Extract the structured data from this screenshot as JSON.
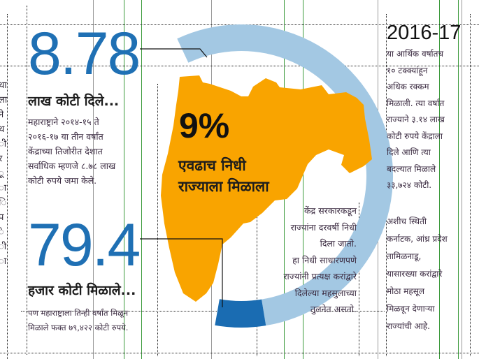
{
  "colors": {
    "accent_blue": "#1f70b4",
    "ring_light": "#a3c8e3",
    "ring_dark": "#1a6cb2",
    "map_orange": "#f9a400"
  },
  "left_fragments": [
    "था",
    "ला",
    "ने",
    "थ",
    "ी.",
    "र",
    "ू",
    "ा",
    "ि",
    "प",
    "े",
    "ी",
    "ा"
  ],
  "stat1": {
    "value": "8.78",
    "heading": "लाख कोटी दिले...",
    "lines": [
      "महाराष्ट्राने २०१४-१५ ते",
      "२०१६-१७ या तीन वर्षांत",
      "केंद्राच्या तिजोरीत देशात",
      "सर्वाधिक म्हणजे ८.७८ लाख",
      "कोटी रुपये जमा केले."
    ]
  },
  "stat2": {
    "value": "79.4",
    "heading": "हजार कोटी मिळाले...",
    "lines": [
      "पण महाराष्ट्राला तिन्ही वर्षांत मिळून",
      "मिळाले फक्त ७९,४२२ कोटी रुपये."
    ]
  },
  "center": {
    "percent": "9%",
    "lines": [
      "एवढाच निधी",
      "राज्याला मिळाला"
    ],
    "share_percent": 9
  },
  "middle_note": {
    "lines": [
      "केंद्र सरकारकडून",
      "राज्यांना दरवर्षी निधी",
      "दिला जातो.",
      "हा निधी साधारणपणे",
      "राज्यांनी प्रत्यक्ष करांद्वारे",
      "दिलेल्या महसुलाच्या",
      "तुलनेत असतो."
    ]
  },
  "sidebar": {
    "year": "2016-17",
    "para1": [
      "या आर्थिक वर्षातच",
      "१० टक्क्यांहून",
      "अधिक रक्कम",
      "मिळाली. त्या वर्षात",
      "राज्याने ३.१४ लाख",
      "कोटी रुपये केंद्राला",
      "दिले आणि त्या",
      "बदल्यात मिळाले",
      "३३,७२४ कोटी."
    ],
    "para2": [
      "अशीच स्थिती",
      "कर्नाटक, आंध्र प्रदेश",
      "तामिळनाडू,",
      "यासारख्या करांद्वारे",
      "मोठा महसूल",
      "मिळवून देणाऱ्या",
      "राज्यांची आहे."
    ]
  }
}
